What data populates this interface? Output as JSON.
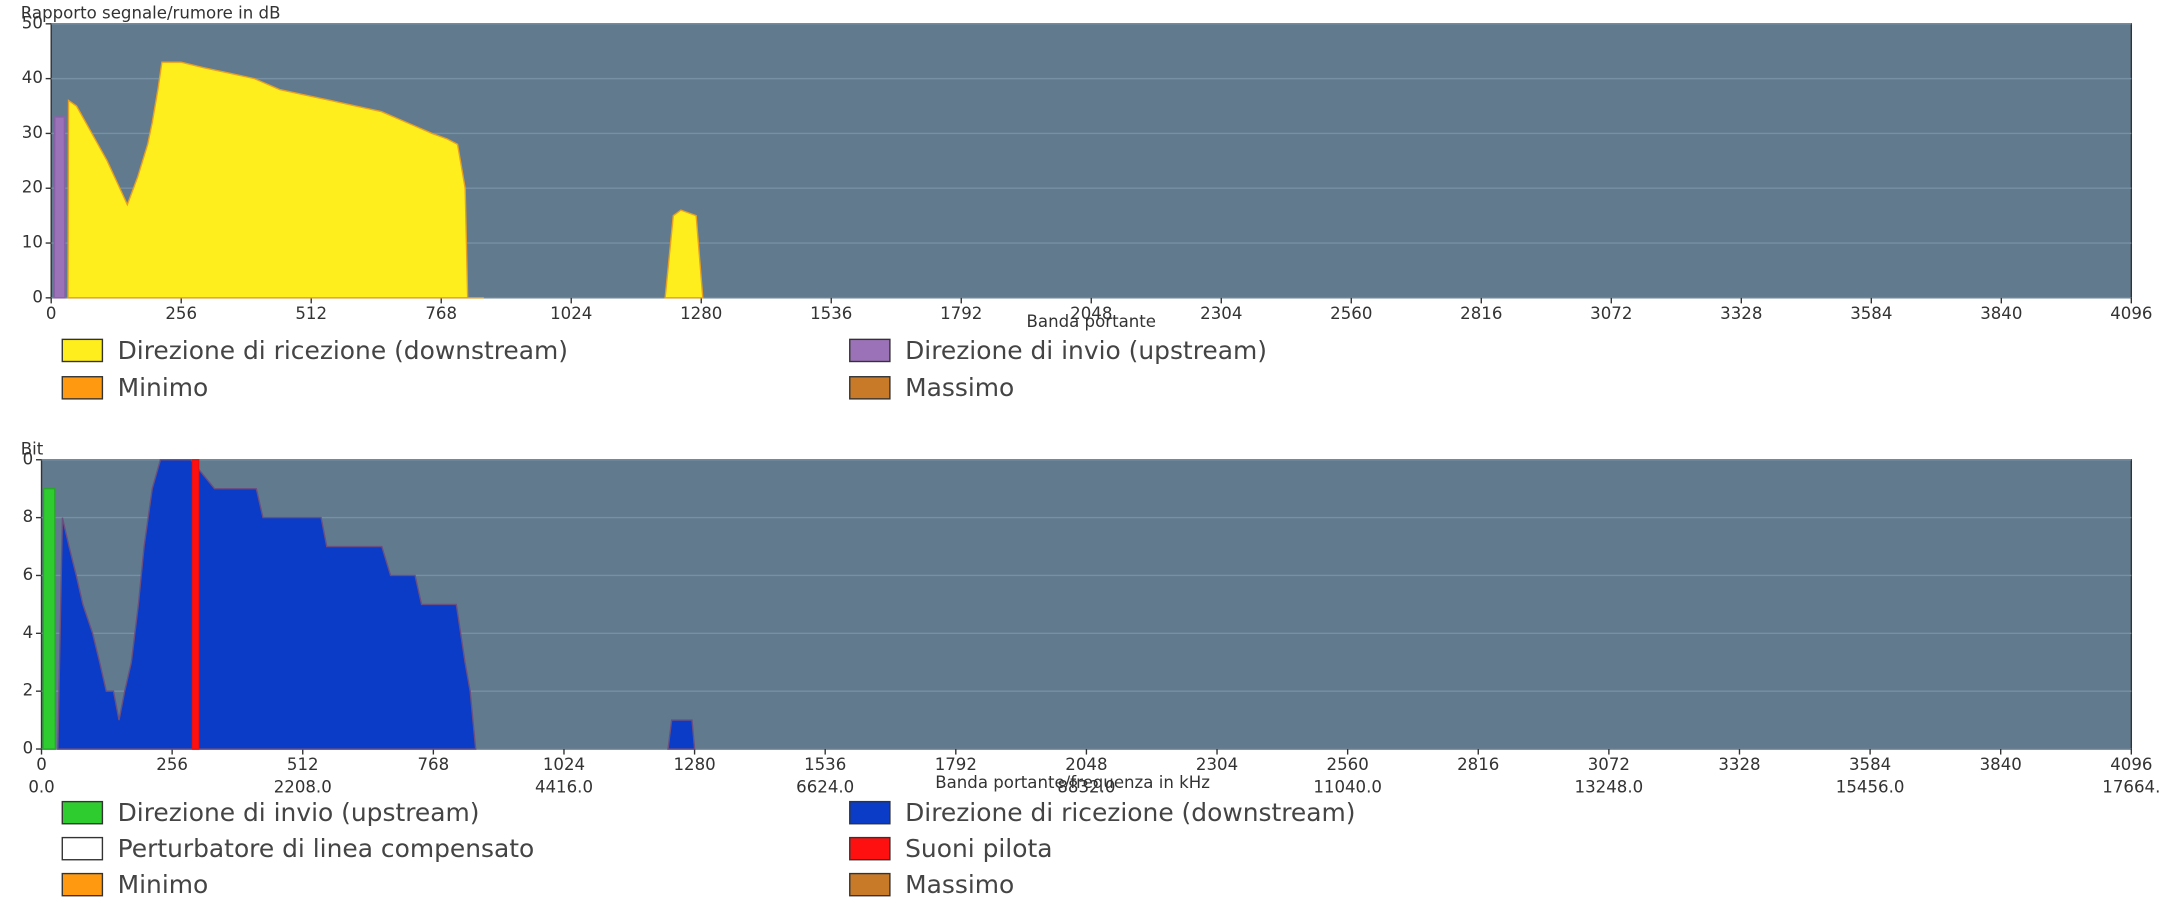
{
  "chart_data": [
    {
      "type": "area",
      "title": "Rapporto segnale/rumore in dB",
      "x_label": "Banda portante",
      "xlim": [
        0,
        4096
      ],
      "xticks": [
        0,
        256,
        512,
        768,
        1024,
        1280,
        1536,
        1792,
        2048,
        2304,
        2560,
        2816,
        3072,
        3328,
        3584,
        3840,
        4096
      ],
      "ylim": [
        0,
        50
      ],
      "yticks": [
        0,
        10,
        20,
        30,
        40,
        50
      ],
      "grid": true,
      "background": "#627a8e",
      "series": [
        {
          "name": "Direzione di ricezione  (downstream)",
          "color": "#ffee1e",
          "stroke": "#e8a020",
          "x": [
            33,
            34,
            50,
            80,
            110,
            140,
            150,
            170,
            190,
            199,
            210,
            218,
            256,
            300,
            350,
            400,
            450,
            500,
            550,
            600,
            650,
            700,
            750,
            780,
            800,
            815,
            820,
            852,
            null,
            1209,
            1225,
            1240,
            1270,
            1283
          ],
          "values": [
            0,
            36,
            35,
            30,
            25,
            19,
            17,
            22,
            28,
            32,
            38,
            43,
            43,
            42,
            41,
            40,
            38,
            37,
            36,
            35,
            34,
            32,
            30,
            29,
            28,
            20,
            0,
            0,
            null,
            0,
            15,
            16,
            15,
            0
          ]
        },
        {
          "name": "Minimo",
          "color": "#ff9a10",
          "x": [],
          "values": []
        },
        {
          "name": "Direzione di invio  (upstream)",
          "color": "#9b72b8",
          "stroke": "#8a60a8",
          "x": [
            6,
            7,
            26,
            27
          ],
          "values": [
            0,
            33,
            33,
            0
          ]
        },
        {
          "name": "Massimo",
          "color": "#c87a28",
          "x": [],
          "values": []
        }
      ]
    },
    {
      "type": "area",
      "title": "Bit",
      "x_label": "Banda portante/frequenza in kHz",
      "xlim": [
        0,
        4096
      ],
      "xticks": [
        0,
        256,
        512,
        768,
        1024,
        1280,
        1536,
        1792,
        2048,
        2304,
        2560,
        2816,
        3072,
        3328,
        3584,
        3840,
        4096
      ],
      "x2ticks": [
        {
          "value": 0,
          "label": "0.0"
        },
        {
          "value": 512,
          "label": "2208.0"
        },
        {
          "value": 1024,
          "label": "4416.0"
        },
        {
          "value": 1536,
          "label": "6624.0"
        },
        {
          "value": 2048,
          "label": "8832.0"
        },
        {
          "value": 2560,
          "label": "11040.0"
        },
        {
          "value": 3072,
          "label": "13248.0"
        },
        {
          "value": 3584,
          "label": "15456.0"
        },
        {
          "value": 4096,
          "label": "17664."
        }
      ],
      "ylim": [
        0,
        10
      ],
      "yticks": [
        0,
        2,
        4,
        6,
        8,
        {
          "value": 10,
          "label": "0"
        }
      ],
      "grid": true,
      "background": "#627a8e",
      "series": [
        {
          "name": "Direzione di invio  (upstream)",
          "color": "#2ecc2e",
          "stroke": "#28a828",
          "x": [
            3,
            4,
            26,
            27
          ],
          "values": [
            0,
            9,
            9,
            0
          ]
        },
        {
          "name": "Perturbatore di linea compensato",
          "color": "#ffffff",
          "x": [],
          "values": []
        },
        {
          "name": "Minimo",
          "color": "#ff9a10",
          "x": [],
          "values": []
        },
        {
          "name": "Direzione di ricezione  (downstream)",
          "color": "#0a3cc8",
          "stroke": "#6a5080",
          "x": [
            32,
            41,
            54,
            68,
            81,
            100,
            114,
            127,
            141,
            152,
            163,
            176,
            190,
            201,
            217,
            233,
            293,
            339,
            421,
            434,
            548,
            559,
            667,
            684,
            732,
            745,
            813,
            830,
            840,
            851,
            null,
            1228,
            1235,
            1275,
            1280
          ],
          "values": [
            0,
            8,
            7,
            6,
            5,
            4,
            3,
            2,
            2,
            1,
            2,
            3,
            5,
            7,
            9,
            10,
            10,
            9,
            9,
            8,
            8,
            7,
            7,
            6,
            6,
            5,
            5,
            3,
            2,
            0,
            null,
            0,
            1,
            1,
            0
          ]
        },
        {
          "name": "Suoni pilota",
          "color": "#ff1010",
          "stroke": "#ee1010",
          "x": [
            296,
            296,
            308,
            308
          ],
          "values": [
            0,
            10,
            10,
            0
          ]
        },
        {
          "name": "Massimo",
          "color": "#c87a28",
          "x": [],
          "values": []
        }
      ]
    }
  ]
}
